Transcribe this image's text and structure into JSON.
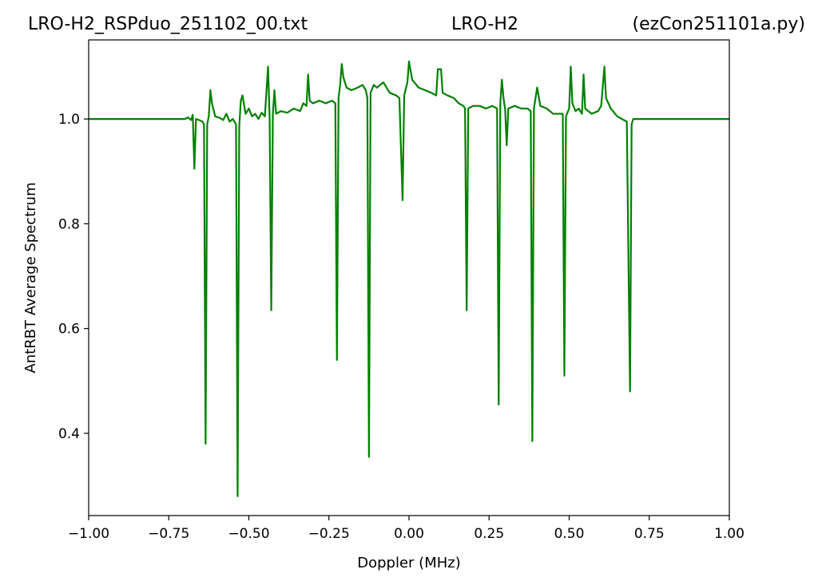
{
  "chart_data": {
    "type": "line",
    "title_left": "LRO-H2_RSPduo_251102_00.txt",
    "title": "LRO-H2",
    "title_right": "(ezCon251101a.py)",
    "x_label": "Doppler (MHz)",
    "y_label": "AntRBT Average Spectrum",
    "color": "#008000",
    "xlim": [
      -1.0,
      1.0
    ],
    "ylim": [
      0.243,
      1.151
    ],
    "xticks": [
      {
        "value": -1.0,
        "label": "−1.00"
      },
      {
        "value": -0.75,
        "label": "−0.75"
      },
      {
        "value": -0.5,
        "label": "−0.50"
      },
      {
        "value": -0.25,
        "label": "−0.25"
      },
      {
        "value": 0.0,
        "label": "0.00"
      },
      {
        "value": 0.25,
        "label": "0.25"
      },
      {
        "value": 0.5,
        "label": "0.50"
      },
      {
        "value": 0.75,
        "label": "0.75"
      },
      {
        "value": 1.0,
        "label": "1.00"
      }
    ],
    "yticks": [
      {
        "value": 0.4,
        "label": "0.4"
      },
      {
        "value": 0.6,
        "label": "0.6"
      },
      {
        "value": 0.8,
        "label": "0.8"
      },
      {
        "value": 1.0,
        "label": "1.0"
      }
    ],
    "x": [
      -1.0,
      -0.7,
      -0.69,
      -0.68,
      -0.675,
      -0.67,
      -0.665,
      -0.655,
      -0.645,
      -0.64,
      -0.635,
      -0.63,
      -0.625,
      -0.62,
      -0.615,
      -0.605,
      -0.59,
      -0.58,
      -0.57,
      -0.56,
      -0.55,
      -0.54,
      -0.535,
      -0.53,
      -0.525,
      -0.52,
      -0.51,
      -0.5,
      -0.49,
      -0.48,
      -0.47,
      -0.46,
      -0.45,
      -0.44,
      -0.435,
      -0.43,
      -0.425,
      -0.42,
      -0.415,
      -0.4,
      -0.38,
      -0.36,
      -0.34,
      -0.33,
      -0.32,
      -0.315,
      -0.31,
      -0.3,
      -0.28,
      -0.26,
      -0.24,
      -0.23,
      -0.225,
      -0.22,
      -0.215,
      -0.21,
      -0.205,
      -0.195,
      -0.18,
      -0.16,
      -0.145,
      -0.135,
      -0.13,
      -0.125,
      -0.12,
      -0.11,
      -0.1,
      -0.08,
      -0.06,
      -0.04,
      -0.03,
      -0.02,
      -0.015,
      -0.005,
      0.0,
      0.01,
      0.03,
      0.05,
      0.07,
      0.085,
      0.09,
      0.1,
      0.105,
      0.12,
      0.14,
      0.155,
      0.17,
      0.175,
      0.18,
      0.185,
      0.2,
      0.22,
      0.24,
      0.26,
      0.275,
      0.28,
      0.285,
      0.29,
      0.295,
      0.3,
      0.305,
      0.31,
      0.33,
      0.35,
      0.37,
      0.38,
      0.385,
      0.39,
      0.4,
      0.41,
      0.43,
      0.45,
      0.47,
      0.48,
      0.485,
      0.49,
      0.5,
      0.505,
      0.51,
      0.52,
      0.53,
      0.54,
      0.545,
      0.55,
      0.57,
      0.59,
      0.6,
      0.61,
      0.615,
      0.63,
      0.65,
      0.665,
      0.68,
      0.69,
      0.695,
      0.7,
      1.0
    ],
    "values": [
      1.0,
      1.0,
      1.003,
      0.998,
      1.008,
      0.905,
      1.0,
      0.998,
      0.995,
      0.99,
      0.38,
      0.99,
      1.005,
      1.055,
      1.03,
      1.005,
      1.002,
      0.998,
      1.01,
      0.995,
      1.0,
      0.99,
      0.28,
      0.985,
      1.035,
      1.045,
      1.01,
      1.02,
      1.005,
      1.01,
      1.0,
      1.012,
      1.005,
      1.1,
      1.0,
      0.635,
      1.01,
      1.055,
      1.01,
      1.015,
      1.012,
      1.02,
      1.015,
      1.03,
      1.025,
      1.085,
      1.035,
      1.03,
      1.035,
      1.03,
      1.035,
      1.03,
      0.54,
      1.04,
      1.065,
      1.105,
      1.08,
      1.06,
      1.055,
      1.06,
      1.065,
      1.055,
      1.04,
      0.355,
      1.05,
      1.065,
      1.06,
      1.07,
      1.05,
      1.045,
      1.04,
      0.845,
      1.045,
      1.07,
      1.11,
      1.075,
      1.06,
      1.055,
      1.05,
      1.045,
      1.095,
      1.095,
      1.05,
      1.045,
      1.04,
      1.03,
      1.025,
      1.02,
      0.635,
      1.02,
      1.025,
      1.025,
      1.02,
      1.025,
      1.02,
      0.455,
      1.03,
      1.075,
      1.04,
      1.02,
      0.95,
      1.02,
      1.025,
      1.02,
      1.02,
      1.015,
      0.385,
      1.02,
      1.06,
      1.025,
      1.02,
      1.01,
      1.01,
      1.01,
      0.51,
      1.005,
      1.02,
      1.1,
      1.03,
      1.015,
      1.02,
      1.01,
      1.085,
      1.02,
      1.01,
      1.015,
      1.025,
      1.1,
      1.04,
      1.02,
      1.005,
      1.0,
      0.995,
      0.48,
      0.99,
      1.0,
      1.0
    ]
  }
}
